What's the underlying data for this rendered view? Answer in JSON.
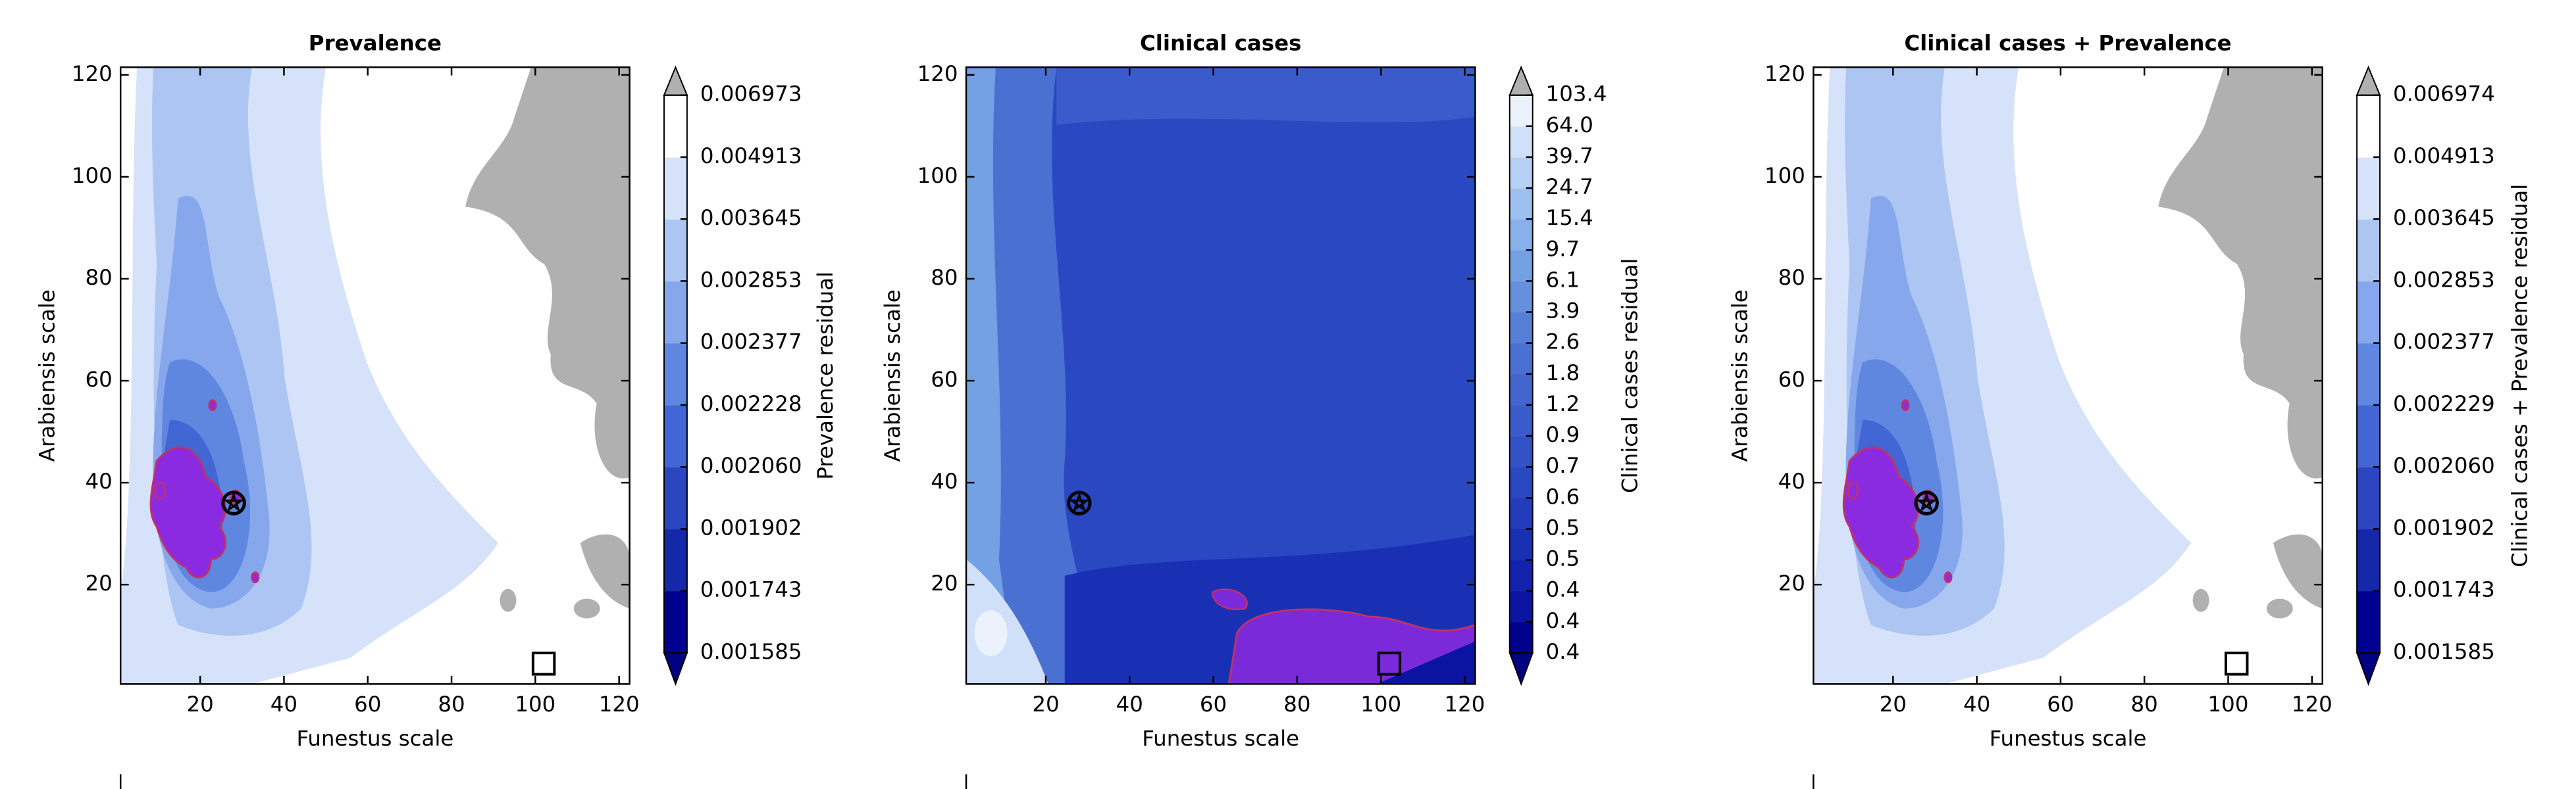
{
  "chart_data": [
    {
      "type": "contour",
      "title": "Prevalence",
      "xlabel": "Funestus scale",
      "ylabel": "Arabiensis scale",
      "xlim": [
        1,
        122.5
      ],
      "ylim": [
        0.5,
        121.5
      ],
      "xticks": [
        20,
        40,
        60,
        80,
        100,
        120
      ],
      "yticks": [
        20,
        40,
        60,
        80,
        100,
        120
      ],
      "colorbar_label": "Prevalence residual",
      "colorbar_ticks": [
        0.001585,
        0.001743,
        0.001902,
        {
          "value": 0.00206,
          "label": "0.002060"
        },
        0.002228,
        0.002377,
        0.002853,
        0.003645,
        0.004913,
        0.006973
      ],
      "colorbar_colors": [
        "#000090",
        "#1428a8",
        "#2c46c0",
        "#4266d4",
        "#5f87e0",
        "#86a7eb",
        "#adc5f2",
        "#d6e2f9",
        "#ffffff"
      ],
      "extend_colors": [
        "#000080",
        "#b0b0b0"
      ],
      "markers": [
        [
          28,
          36
        ],
        [
          102,
          4.5
        ]
      ]
    },
    {
      "type": "contour",
      "title": "Clinical cases",
      "xlabel": "Funestus scale",
      "ylabel": "Arabiensis scale",
      "xlim": [
        1,
        122.5
      ],
      "ylim": [
        0.5,
        121.5
      ],
      "xticks": [
        20,
        40,
        60,
        80,
        100,
        120
      ],
      "yticks": [
        20,
        40,
        60,
        80,
        100,
        120
      ],
      "colorbar_label": "Clinical cases residual",
      "colorbar_ticks": [
        0.4,
        0.4,
        0.4,
        0.5,
        0.5,
        0.6,
        0.7,
        0.9,
        1.2,
        1.8,
        2.6,
        3.9,
        6.1,
        9.7,
        15.4,
        24.7,
        39.7,
        {
          "value": 64,
          "label": "64.0"
        },
        103.4
      ],
      "colorbar_colors": [
        "#00008c",
        "#0a14a0",
        "#1222ac",
        "#1a30b4",
        "#223cbc",
        "#2a48c2",
        "#3252c6",
        "#3a5cca",
        "#4266ce",
        "#4a70d2",
        "#5680d8",
        "#6490de",
        "#74a0e4",
        "#88b0ea",
        "#9ec0f0",
        "#b6d0f4",
        "#d0e0f8",
        "#ecf2fc"
      ],
      "extend_colors": [
        "#000080",
        "#b0b0b0"
      ],
      "markers": [
        [
          28,
          36
        ],
        [
          102,
          4.5
        ]
      ]
    },
    {
      "type": "contour",
      "title": "Clinical cases + Prevalence",
      "xlabel": "Funestus scale",
      "ylabel": "Arabiensis scale",
      "xlim": [
        1,
        122.5
      ],
      "ylim": [
        0.5,
        121.5
      ],
      "xticks": [
        20,
        40,
        60,
        80,
        100,
        120
      ],
      "yticks": [
        20,
        40,
        60,
        80,
        100,
        120
      ],
      "colorbar_label": "Clinical cases + Prevalence residual",
      "colorbar_ticks": [
        0.001585,
        0.001743,
        0.001902,
        {
          "value": 0.00206,
          "label": "0.002060"
        },
        0.002229,
        0.002377,
        0.002853,
        0.003645,
        0.004913,
        0.006974
      ],
      "colorbar_colors": [
        "#000090",
        "#1428a8",
        "#2c46c0",
        "#4266d4",
        "#5f87e0",
        "#86a7eb",
        "#adc5f2",
        "#d6e2f9",
        "#ffffff"
      ],
      "extend_colors": [
        "#000080",
        "#b0b0b0"
      ],
      "markers": [
        [
          28,
          36
        ],
        [
          102,
          4.5
        ]
      ]
    }
  ]
}
